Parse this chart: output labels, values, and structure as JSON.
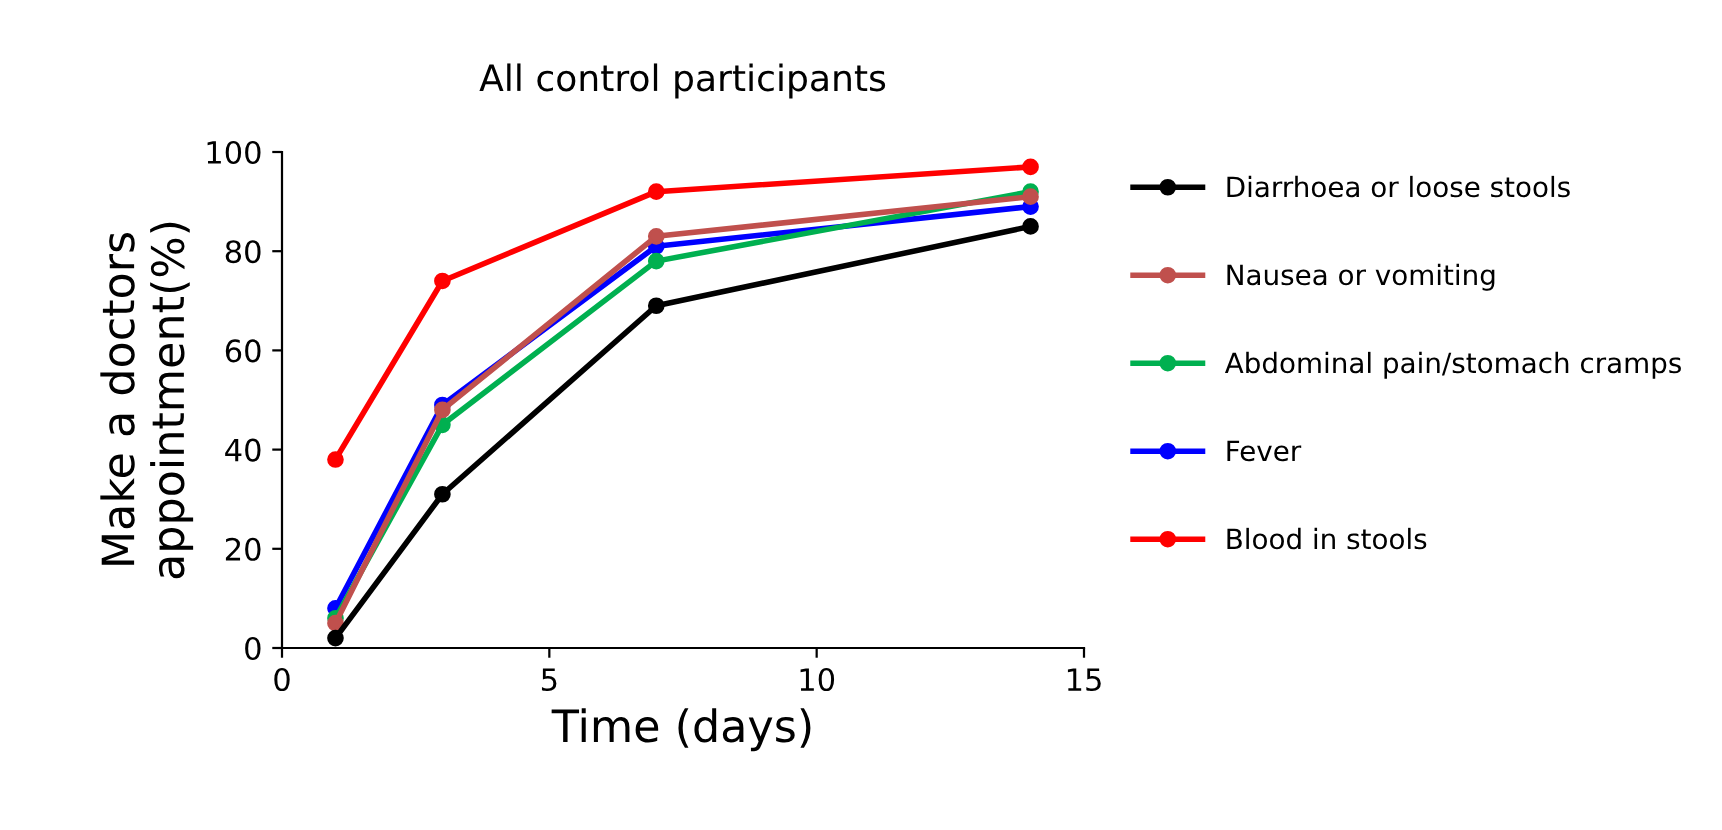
{
  "chart_data": {
    "type": "line",
    "title": "All control participants",
    "xlabel": "Time (days)",
    "ylabel": "Make a doctors\nappointment(%)",
    "x": [
      1,
      3,
      7,
      14
    ],
    "xlim": [
      0,
      15
    ],
    "xticks": [
      0,
      5,
      10,
      15
    ],
    "ylim": [
      0,
      100
    ],
    "yticks": [
      0,
      20,
      40,
      60,
      80,
      100
    ],
    "marker": "circle",
    "line_style": "solid",
    "grid": false,
    "legend": "right",
    "series": [
      {
        "name": "Diarrhoea or loose stools",
        "color": "#000000",
        "values": [
          2,
          31,
          69,
          85
        ]
      },
      {
        "name": "Nausea or vomiting",
        "color": "#c0504d",
        "values": [
          5,
          48,
          83,
          91
        ]
      },
      {
        "name": "Abdominal pain/stomach cramps",
        "color": "#00b050",
        "values": [
          6,
          45,
          78,
          92
        ]
      },
      {
        "name": "Fever",
        "color": "#0000ff",
        "values": [
          8,
          49,
          81,
          89
        ]
      },
      {
        "name": "Blood in stools",
        "color": "#ff0000",
        "values": [
          38,
          74,
          92,
          97
        ]
      }
    ]
  }
}
